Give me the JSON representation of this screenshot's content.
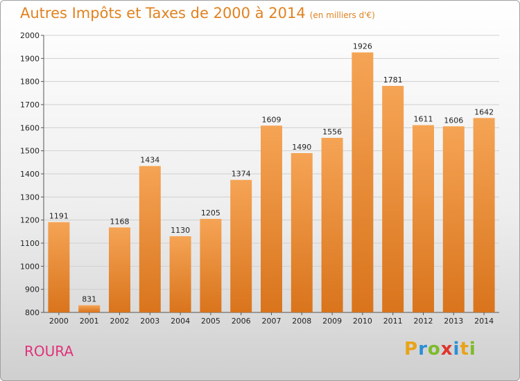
{
  "header": {
    "title": "Autres Impôts et Taxes de 2000 à 2014",
    "unit": "(en milliers d'€)"
  },
  "footer": {
    "commune": "ROURA",
    "brand": [
      "P",
      "r",
      "o",
      "x",
      "i",
      "t",
      "i"
    ],
    "brand_colors": [
      "#e8a318",
      "#2a8fd6",
      "#7dbb28",
      "#e0342c",
      "#2a8fd6",
      "#e8a318",
      "#7dbb28"
    ]
  },
  "chart_data": {
    "type": "bar",
    "title": "Autres Impôts et Taxes de 2000 à 2014",
    "subtitle": "(en milliers d'€)",
    "xlabel": "",
    "ylabel": "",
    "categories": [
      "2000",
      "2001",
      "2002",
      "2003",
      "2004",
      "2005",
      "2006",
      "2007",
      "2008",
      "2009",
      "2010",
      "2011",
      "2012",
      "2013",
      "2014"
    ],
    "values": [
      1191,
      831,
      1168,
      1434,
      1130,
      1205,
      1374,
      1609,
      1490,
      1556,
      1926,
      1781,
      1611,
      1606,
      1642
    ],
    "ylim": [
      800,
      2000
    ],
    "yticks": [
      800,
      900,
      1000,
      1100,
      1200,
      1300,
      1400,
      1500,
      1600,
      1700,
      1800,
      1900,
      2000
    ],
    "grid": true,
    "bar_color_top": "#f5a455",
    "bar_color_bottom": "#d9741c"
  }
}
